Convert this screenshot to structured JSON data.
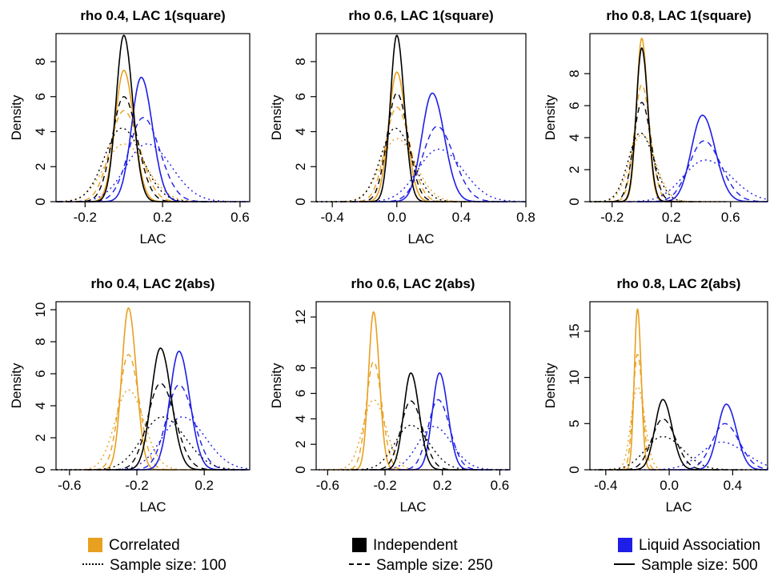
{
  "colors": {
    "correlated": "#E8A020",
    "independent": "#000000",
    "liquid_association": "#1E1EE6"
  },
  "legend": {
    "groups": [
      {
        "label": "Correlated",
        "color": "#E8A020"
      },
      {
        "label": "Independent",
        "color": "#000000"
      },
      {
        "label": "Liquid Association",
        "color": "#1E1EE6"
      }
    ],
    "linetypes": [
      {
        "label": "Sample size: 100",
        "style": "dotted"
      },
      {
        "label": "Sample size: 250",
        "style": "dashed"
      },
      {
        "label": "Sample size: 500",
        "style": "solid"
      }
    ]
  },
  "chart_data": [
    {
      "type": "line",
      "title": "rho 0.4, LAC 1(square)",
      "xlabel": "LAC",
      "ylabel": "Density",
      "xlim": [
        -0.35,
        0.65
      ],
      "xticks": [
        -0.2,
        0.2,
        0.6
      ],
      "xticklabels": [
        "-0.2",
        "0.2",
        "0.6"
      ],
      "ylim": [
        0,
        9.6
      ],
      "yticks": [
        0,
        2,
        4,
        6,
        8
      ],
      "series": [
        {
          "group": "correlated",
          "size": 100,
          "mode": 0.0,
          "peak": 3.3,
          "sd": 0.1
        },
        {
          "group": "correlated",
          "size": 250,
          "mode": 0.0,
          "peak": 5.2,
          "sd": 0.07
        },
        {
          "group": "correlated",
          "size": 500,
          "mode": 0.0,
          "peak": 7.5,
          "sd": 0.045
        },
        {
          "group": "independent",
          "size": 100,
          "mode": -0.01,
          "peak": 4.2,
          "sd": 0.09
        },
        {
          "group": "independent",
          "size": 250,
          "mode": 0.0,
          "peak": 6.0,
          "sd": 0.06
        },
        {
          "group": "independent",
          "size": 500,
          "mode": 0.0,
          "peak": 9.5,
          "sd": 0.04
        },
        {
          "group": "liquid_association",
          "size": 100,
          "mode": 0.12,
          "peak": 3.3,
          "sd": 0.11
        },
        {
          "group": "liquid_association",
          "size": 250,
          "mode": 0.1,
          "peak": 4.8,
          "sd": 0.075
        },
        {
          "group": "liquid_association",
          "size": 500,
          "mode": 0.09,
          "peak": 7.1,
          "sd": 0.05
        }
      ]
    },
    {
      "type": "line",
      "title": "rho 0.6, LAC 1(square)",
      "xlabel": "LAC",
      "ylabel": "Density",
      "xlim": [
        -0.5,
        0.8
      ],
      "xticks": [
        -0.4,
        0.0,
        0.4,
        0.8
      ],
      "xticklabels": [
        "-0.4",
        "0.0",
        "0.4",
        "0.8"
      ],
      "ylim": [
        0,
        9.6
      ],
      "yticks": [
        0,
        2,
        4,
        6,
        8
      ],
      "series": [
        {
          "group": "correlated",
          "size": 100,
          "mode": 0.0,
          "peak": 3.6,
          "sd": 0.1
        },
        {
          "group": "correlated",
          "size": 250,
          "mode": 0.0,
          "peak": 5.4,
          "sd": 0.07
        },
        {
          "group": "correlated",
          "size": 500,
          "mode": 0.0,
          "peak": 7.4,
          "sd": 0.05
        },
        {
          "group": "independent",
          "size": 100,
          "mode": -0.01,
          "peak": 4.2,
          "sd": 0.09
        },
        {
          "group": "independent",
          "size": 250,
          "mode": 0.0,
          "peak": 6.2,
          "sd": 0.06
        },
        {
          "group": "independent",
          "size": 500,
          "mode": 0.0,
          "peak": 9.5,
          "sd": 0.04
        },
        {
          "group": "liquid_association",
          "size": 100,
          "mode": 0.26,
          "peak": 3.0,
          "sd": 0.13
        },
        {
          "group": "liquid_association",
          "size": 250,
          "mode": 0.25,
          "peak": 4.3,
          "sd": 0.09
        },
        {
          "group": "liquid_association",
          "size": 500,
          "mode": 0.22,
          "peak": 6.2,
          "sd": 0.065
        }
      ]
    },
    {
      "type": "line",
      "title": "rho 0.8, LAC 1(square)",
      "xlabel": "LAC",
      "ylabel": "Density",
      "xlim": [
        -0.35,
        0.85
      ],
      "xticks": [
        -0.2,
        0.2,
        0.6
      ],
      "xticklabels": [
        "-0.2",
        "0.2",
        "0.6"
      ],
      "ylim": [
        0,
        10.5
      ],
      "yticks": [
        0,
        2,
        4,
        6,
        8
      ],
      "series": [
        {
          "group": "correlated",
          "size": 100,
          "mode": 0.0,
          "peak": 4.2,
          "sd": 0.08
        },
        {
          "group": "correlated",
          "size": 250,
          "mode": 0.0,
          "peak": 7.3,
          "sd": 0.05
        },
        {
          "group": "correlated",
          "size": 500,
          "mode": 0.0,
          "peak": 10.2,
          "sd": 0.035
        },
        {
          "group": "independent",
          "size": 100,
          "mode": -0.01,
          "peak": 4.3,
          "sd": 0.08
        },
        {
          "group": "independent",
          "size": 250,
          "mode": 0.0,
          "peak": 6.2,
          "sd": 0.055
        },
        {
          "group": "independent",
          "size": 500,
          "mode": 0.0,
          "peak": 9.6,
          "sd": 0.037
        },
        {
          "group": "liquid_association",
          "size": 100,
          "mode": 0.43,
          "peak": 2.6,
          "sd": 0.15
        },
        {
          "group": "liquid_association",
          "size": 250,
          "mode": 0.42,
          "peak": 3.8,
          "sd": 0.1
        },
        {
          "group": "liquid_association",
          "size": 500,
          "mode": 0.41,
          "peak": 5.4,
          "sd": 0.075
        }
      ]
    },
    {
      "type": "line",
      "title": "rho 0.4, LAC 2(abs)",
      "xlabel": "LAC",
      "ylabel": "Density",
      "xlim": [
        -0.68,
        0.47
      ],
      "xticks": [
        -0.6,
        -0.2,
        0.2
      ],
      "xticklabels": [
        "-0.6",
        "-0.2",
        "0.2"
      ],
      "ylim": [
        0,
        10.5
      ],
      "yticks": [
        0,
        2,
        4,
        6,
        8,
        10
      ],
      "series": [
        {
          "group": "correlated",
          "size": 100,
          "mode": -0.25,
          "peak": 5.0,
          "sd": 0.08
        },
        {
          "group": "correlated",
          "size": 250,
          "mode": -0.25,
          "peak": 7.2,
          "sd": 0.055
        },
        {
          "group": "correlated",
          "size": 500,
          "mode": -0.25,
          "peak": 10.1,
          "sd": 0.04
        },
        {
          "group": "independent",
          "size": 100,
          "mode": -0.05,
          "peak": 3.3,
          "sd": 0.12
        },
        {
          "group": "independent",
          "size": 250,
          "mode": -0.06,
          "peak": 5.4,
          "sd": 0.075
        },
        {
          "group": "independent",
          "size": 500,
          "mode": -0.06,
          "peak": 7.6,
          "sd": 0.055
        },
        {
          "group": "liquid_association",
          "size": 100,
          "mode": 0.07,
          "peak": 3.3,
          "sd": 0.12
        },
        {
          "group": "liquid_association",
          "size": 250,
          "mode": 0.05,
          "peak": 5.3,
          "sd": 0.075
        },
        {
          "group": "liquid_association",
          "size": 500,
          "mode": 0.05,
          "peak": 7.4,
          "sd": 0.055
        }
      ]
    },
    {
      "type": "line",
      "title": "rho 0.6, LAC 2(abs)",
      "xlabel": "LAC",
      "ylabel": "Density",
      "xlim": [
        -0.68,
        0.67
      ],
      "xticks": [
        -0.6,
        -0.2,
        0.2,
        0.6
      ],
      "xticklabels": [
        "-0.6",
        "-0.2",
        "0.2",
        "0.6"
      ],
      "ylim": [
        0,
        13.2
      ],
      "yticks": [
        0,
        2,
        4,
        6,
        8,
        12
      ],
      "series": [
        {
          "group": "correlated",
          "size": 100,
          "mode": -0.28,
          "peak": 5.5,
          "sd": 0.075
        },
        {
          "group": "correlated",
          "size": 250,
          "mode": -0.28,
          "peak": 8.5,
          "sd": 0.05
        },
        {
          "group": "correlated",
          "size": 500,
          "mode": -0.28,
          "peak": 12.4,
          "sd": 0.035
        },
        {
          "group": "independent",
          "size": 100,
          "mode": -0.02,
          "peak": 3.5,
          "sd": 0.11
        },
        {
          "group": "independent",
          "size": 250,
          "mode": -0.02,
          "peak": 5.4,
          "sd": 0.07
        },
        {
          "group": "independent",
          "size": 500,
          "mode": -0.02,
          "peak": 7.6,
          "sd": 0.05
        },
        {
          "group": "liquid_association",
          "size": 100,
          "mode": 0.14,
          "peak": 3.4,
          "sd": 0.11
        },
        {
          "group": "liquid_association",
          "size": 250,
          "mode": 0.17,
          "peak": 5.5,
          "sd": 0.07
        },
        {
          "group": "liquid_association",
          "size": 500,
          "mode": 0.18,
          "peak": 7.6,
          "sd": 0.05
        }
      ]
    },
    {
      "type": "line",
      "title": "rho 0.8, LAC 2(abs)",
      "xlabel": "LAC",
      "ylabel": "Density",
      "xlim": [
        -0.5,
        0.62
      ],
      "xticks": [
        -0.4,
        0.0,
        0.4
      ],
      "xticklabels": [
        "-0.4",
        "0.0",
        "0.4"
      ],
      "ylim": [
        0,
        18.2
      ],
      "yticks": [
        0,
        5,
        10,
        15
      ],
      "series": [
        {
          "group": "correlated",
          "size": 100,
          "mode": -0.2,
          "peak": 9.0,
          "sd": 0.04
        },
        {
          "group": "correlated",
          "size": 250,
          "mode": -0.2,
          "peak": 12.5,
          "sd": 0.028
        },
        {
          "group": "correlated",
          "size": 500,
          "mode": -0.2,
          "peak": 17.4,
          "sd": 0.02
        },
        {
          "group": "independent",
          "size": 100,
          "mode": -0.04,
          "peak": 3.6,
          "sd": 0.11
        },
        {
          "group": "independent",
          "size": 250,
          "mode": -0.04,
          "peak": 5.5,
          "sd": 0.07
        },
        {
          "group": "independent",
          "size": 500,
          "mode": -0.04,
          "peak": 7.6,
          "sd": 0.05
        },
        {
          "group": "liquid_association",
          "size": 100,
          "mode": 0.33,
          "peak": 3.0,
          "sd": 0.13
        },
        {
          "group": "liquid_association",
          "size": 250,
          "mode": 0.35,
          "peak": 5.0,
          "sd": 0.08
        },
        {
          "group": "liquid_association",
          "size": 500,
          "mode": 0.36,
          "peak": 7.1,
          "sd": 0.055
        }
      ]
    }
  ]
}
